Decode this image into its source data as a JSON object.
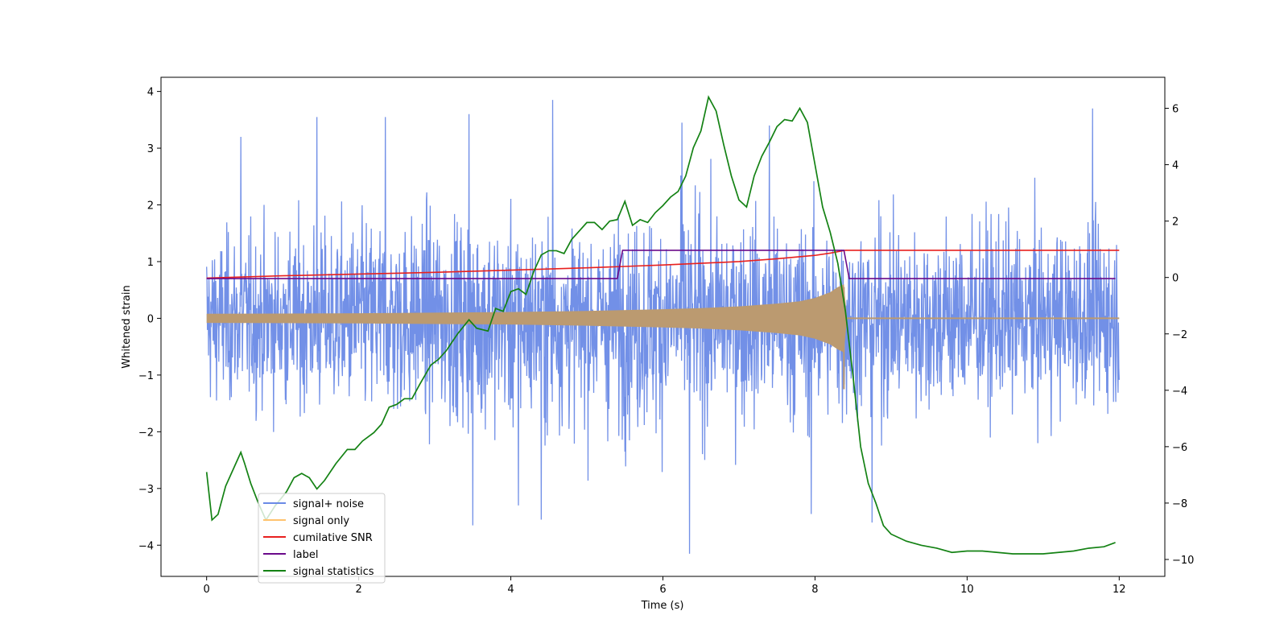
{
  "chart_data": {
    "type": "line",
    "title": "",
    "xlabel": "Time (s)",
    "ylabel": "Whitened strain",
    "y2label": "",
    "xlim": [
      -0.6,
      12.6
    ],
    "ylim": [
      -4.55,
      4.25
    ],
    "y2lim": [
      -10.6,
      7.1
    ],
    "xticks": [
      0,
      2,
      4,
      6,
      8,
      10,
      12
    ],
    "yticks": [
      -4,
      -3,
      -2,
      -1,
      0,
      1,
      2,
      3,
      4
    ],
    "y2ticks": [
      -10,
      -8,
      -6,
      -4,
      -2,
      0,
      2,
      4,
      6
    ],
    "xtick_labels": [
      "0",
      "2",
      "4",
      "6",
      "8",
      "10",
      "12"
    ],
    "ytick_labels": [
      "−4",
      "−3",
      "−2",
      "−1",
      "0",
      "1",
      "2",
      "3",
      "4"
    ],
    "y2tick_labels": [
      "−10",
      "−8",
      "−6",
      "−4",
      "−2",
      "0",
      "2",
      "4",
      "6"
    ],
    "legend_position": "lower-left",
    "legend": [
      "signal+ noise",
      "signal only",
      "cumilative SNR",
      "label",
      "signal statistics"
    ],
    "colors": {
      "noise": "#6a8ae6",
      "signal": "#ffc36e",
      "signal_overlap": "#bb9a70",
      "snr": "#e8201e",
      "label": "#6a0a8a",
      "stats": "#148214"
    },
    "series": [
      {
        "name": "signal+ noise",
        "axis": "left",
        "description": "dense noise, envelope approx",
        "x": [
          0,
          1,
          2,
          3,
          4,
          5,
          6,
          7,
          8,
          9,
          10,
          11,
          12
        ],
        "upper": [
          2.5,
          2.7,
          3.0,
          3.2,
          3.0,
          2.6,
          3.2,
          3.3,
          2.9,
          3.0,
          3.0,
          2.8,
          3.0
        ],
        "lower": [
          -2.6,
          -2.9,
          -3.0,
          -3.2,
          -3.4,
          -3.3,
          -3.7,
          -3.1,
          -3.4,
          -3.1,
          -2.9,
          -2.9,
          -2.6
        ],
        "peaks": [
          [
            0.45,
            3.2
          ],
          [
            1.45,
            3.55
          ],
          [
            2.35,
            3.55
          ],
          [
            3.45,
            3.6
          ],
          [
            4.55,
            3.85
          ],
          [
            6.25,
            3.45
          ],
          [
            7.4,
            3.4
          ],
          [
            11.65,
            3.7
          ],
          [
            3.5,
            -3.65
          ],
          [
            4.1,
            -3.3
          ],
          [
            4.4,
            -3.55
          ],
          [
            6.35,
            -4.15
          ],
          [
            7.95,
            -3.45
          ],
          [
            8.75,
            -3.6
          ]
        ]
      },
      {
        "name": "signal only",
        "axis": "left",
        "description": "chirp envelope",
        "x": [
          0,
          1,
          2,
          3,
          4,
          5,
          6,
          6.5,
          7,
          7.5,
          7.8,
          8.0,
          8.2,
          8.3,
          8.38,
          8.42,
          12
        ],
        "amp": [
          0.08,
          0.085,
          0.09,
          0.1,
          0.11,
          0.13,
          0.16,
          0.18,
          0.21,
          0.26,
          0.3,
          0.36,
          0.46,
          0.55,
          0.6,
          0.0,
          0.0
        ]
      },
      {
        "name": "cumilative SNR",
        "axis": "left",
        "x": [
          0,
          1,
          2,
          3,
          4,
          5,
          6,
          6.5,
          7,
          7.5,
          8,
          8.2,
          8.4,
          12
        ],
        "y": [
          0.71,
          0.75,
          0.78,
          0.81,
          0.85,
          0.89,
          0.94,
          0.97,
          1.0,
          1.05,
          1.11,
          1.15,
          1.2,
          1.2
        ]
      },
      {
        "name": "label",
        "axis": "left",
        "x": [
          0,
          5.4,
          5.47,
          8.38,
          8.45,
          11.95
        ],
        "y": [
          0.7,
          0.7,
          1.2,
          1.2,
          0.7,
          0.7
        ]
      },
      {
        "name": "signal statistics",
        "axis": "right",
        "x": [
          0,
          0.07,
          0.15,
          0.25,
          0.35,
          0.45,
          0.5,
          0.58,
          0.68,
          0.78,
          0.9,
          1.05,
          1.15,
          1.25,
          1.35,
          1.45,
          1.55,
          1.7,
          1.85,
          1.95,
          2.05,
          2.2,
          2.3,
          2.4,
          2.5,
          2.6,
          2.7,
          2.8,
          2.95,
          3.05,
          3.15,
          3.3,
          3.45,
          3.55,
          3.7,
          3.8,
          3.9,
          4.0,
          4.1,
          4.2,
          4.3,
          4.4,
          4.5,
          4.6,
          4.7,
          4.8,
          4.9,
          5.0,
          5.1,
          5.2,
          5.3,
          5.4,
          5.5,
          5.6,
          5.7,
          5.8,
          5.9,
          6.0,
          6.1,
          6.2,
          6.3,
          6.4,
          6.5,
          6.6,
          6.7,
          6.8,
          6.9,
          7.0,
          7.1,
          7.2,
          7.3,
          7.4,
          7.5,
          7.6,
          7.7,
          7.8,
          7.9,
          8.0,
          8.1,
          8.2,
          8.3,
          8.4,
          8.5,
          8.6,
          8.7,
          8.8,
          8.9,
          9.0,
          9.2,
          9.4,
          9.6,
          9.8,
          10.0,
          10.2,
          10.4,
          10.6,
          10.8,
          11.0,
          11.2,
          11.4,
          11.6,
          11.8,
          11.95
        ],
        "y": [
          -6.9,
          -8.6,
          -8.4,
          -7.4,
          -6.8,
          -6.2,
          -6.6,
          -7.3,
          -8.0,
          -8.6,
          -8.1,
          -7.6,
          -7.1,
          -6.95,
          -7.1,
          -7.5,
          -7.2,
          -6.6,
          -6.1,
          -6.1,
          -5.8,
          -5.5,
          -5.2,
          -4.6,
          -4.5,
          -4.3,
          -4.3,
          -3.8,
          -3.1,
          -2.9,
          -2.6,
          -2.0,
          -1.5,
          -1.8,
          -1.9,
          -1.1,
          -1.2,
          -0.5,
          -0.4,
          -0.6,
          0.2,
          0.8,
          0.95,
          0.95,
          0.85,
          1.35,
          1.65,
          1.95,
          1.95,
          1.7,
          2.0,
          2.05,
          2.7,
          1.85,
          2.05,
          1.95,
          2.3,
          2.55,
          2.85,
          3.05,
          3.6,
          4.6,
          5.2,
          6.4,
          5.9,
          4.7,
          3.6,
          2.75,
          2.5,
          3.6,
          4.3,
          4.8,
          5.35,
          5.6,
          5.55,
          6.0,
          5.5,
          4.0,
          2.5,
          1.6,
          0.5,
          -1.2,
          -3.5,
          -6.0,
          -7.3,
          -8.0,
          -8.8,
          -9.1,
          -9.35,
          -9.5,
          -9.6,
          -9.75,
          -9.7,
          -9.7,
          -9.75,
          -9.8,
          -9.8,
          -9.8,
          -9.75,
          -9.7,
          -9.6,
          -9.55,
          -9.4
        ]
      }
    ]
  }
}
